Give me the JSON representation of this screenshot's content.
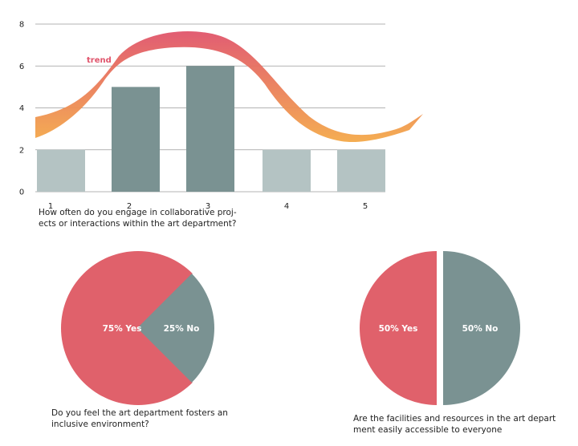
{
  "chart_data": [
    {
      "type": "bar",
      "categories": [
        "1",
        "2",
        "3",
        "4",
        "5"
      ],
      "values": [
        2,
        5,
        6,
        2,
        2
      ],
      "bar_colors": [
        "#b4c3c3",
        "#7a9292",
        "#7a9292",
        "#b4c3c3",
        "#b4c3c3"
      ],
      "yticks": [
        "0",
        "2",
        "4",
        "6",
        "8"
      ],
      "ylim": [
        0,
        8
      ],
      "grid": true,
      "trend_label": "trend",
      "trend_colors": [
        "#e0546b",
        "#f4a949"
      ],
      "caption": "How often do you engage in collaborative proj-\nects or interactions within the art department?"
    },
    {
      "type": "pie",
      "slices": [
        {
          "label": "75% Yes",
          "value": 75,
          "color": "#e0616b"
        },
        {
          "label": "25% No",
          "value": 25,
          "color": "#7a9292"
        }
      ],
      "caption": "Do you feel the art department fosters an\ninclusive environment?"
    },
    {
      "type": "pie",
      "slices": [
        {
          "label": "50% Yes",
          "value": 50,
          "color": "#e0616b"
        },
        {
          "label": "50% No",
          "value": 50,
          "color": "#7a9292"
        }
      ],
      "caption": "Are the facilities and resources in the art depart\nment easily accessible to everyone"
    }
  ]
}
